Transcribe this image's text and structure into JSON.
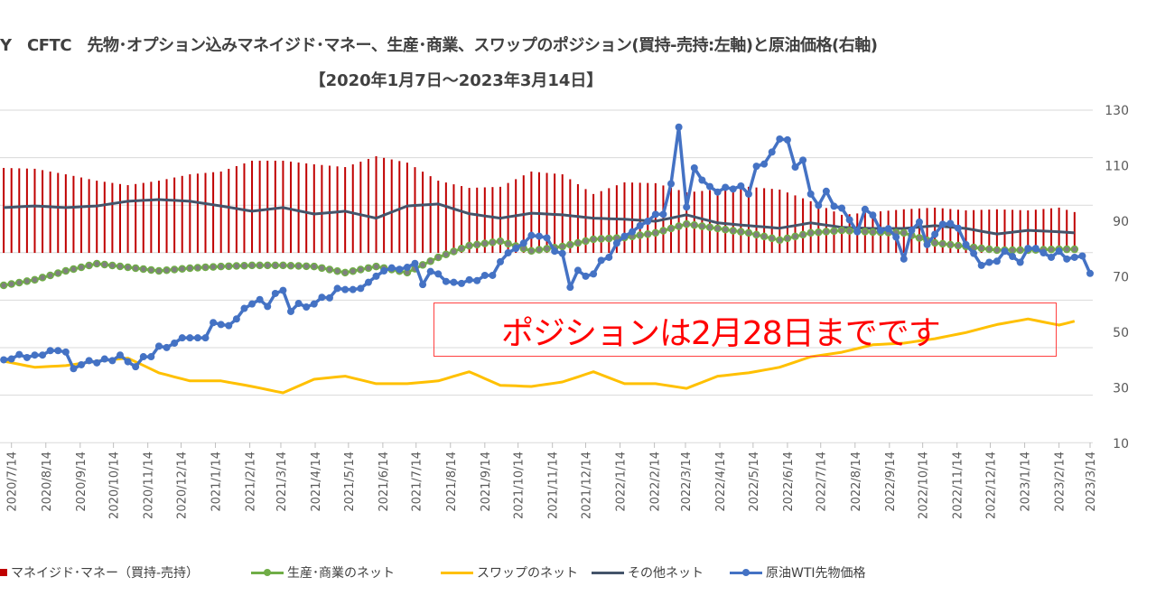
{
  "title": "Y　CFTC　先物･オプション込みマネイジド･マネー、生産･商業、スワップのポジション(買持-売持:左軸)と原油価格(右軸)",
  "subtitle": "【2020年1月7日～2023年3月14日】",
  "annotation": "ポジションは2月28日までです",
  "legend": [
    {
      "label": "マネイジド･マネー（買持-売持）",
      "color": "#c00000",
      "marker": "square"
    },
    {
      "label": "生産･商業のネット",
      "color": "#70ad47",
      "marker": "line-dot"
    },
    {
      "label": "スワップのネット",
      "color": "#ffc000",
      "marker": "line"
    },
    {
      "label": "その他ネット",
      "color": "#44546a",
      "marker": "line"
    },
    {
      "label": "原油WTI先物価格",
      "color": "#4472c4",
      "marker": "line-dot"
    }
  ],
  "chart_data": {
    "type": "bar+line",
    "title": "Y　CFTC　先物･オプション込みマネイジド･マネー、生産･商業、スワップのポジション(買持-売持:左軸)と原油価格(右軸)",
    "subtitle": "【2020年1月7日～2023年3月14日】",
    "right_axis": {
      "ticks": [
        10,
        30,
        50,
        70,
        90,
        110,
        130
      ],
      "range": [
        10,
        130
      ]
    },
    "left_axis": "not visible (cropped)",
    "grid": true,
    "legend_position": "bottom",
    "x_tick_labels": [
      "2020/7/14",
      "2020/8/14",
      "2020/9/14",
      "2020/10/14",
      "2020/11/14",
      "2020/12/14",
      "2021/1/14",
      "2021/2/14",
      "2021/3/14",
      "2021/4/14",
      "2021/5/14",
      "2021/6/14",
      "2021/7/14",
      "2021/8/14",
      "2021/9/14",
      "2021/10/14",
      "2021/11/14",
      "2021/12/14",
      "2022/1/14",
      "2022/2/14",
      "2022/3/14",
      "2022/4/14",
      "2022/5/14",
      "2022/6/14",
      "2022/7/14",
      "2022/8/14",
      "2022/9/14",
      "2022/10/14",
      "2022/11/14",
      "2022/12/14",
      "2023/1/14",
      "2023/2/14",
      "2023/3/14"
    ],
    "wti": {
      "name": "原油WTI先物価格",
      "frequency": "weekly",
      "first": "2020/7/7",
      "last": "2023/3/14",
      "values": [
        40.1,
        40.4,
        42.0,
        40.9,
        41.8,
        41.8,
        43.4,
        43.4,
        42.9,
        36.9,
        38.3,
        39.8,
        39.0,
        40.4,
        39.8,
        41.8,
        39.4,
        37.6,
        41.2,
        41.2,
        45.0,
        44.5,
        46.1,
        48.0,
        48.0,
        48.0,
        48.0,
        53.5,
        52.8,
        52.4,
        54.8,
        58.6,
        60.2,
        61.8,
        59.3,
        64.0,
        65.1,
        57.5,
        60.4,
        59.1,
        60.2,
        62.6,
        62.4,
        65.8,
        65.4,
        65.4,
        65.8,
        68.0,
        70.2,
        72.1,
        73.2,
        72.7,
        73.4,
        74.8,
        67.2,
        71.9,
        71.0,
        68.3,
        68.0,
        67.6,
        68.9,
        68.6,
        70.5,
        70.5,
        75.4,
        78.6,
        80.2,
        82.1,
        84.9,
        84.6,
        84.0,
        79.2,
        78.4,
        66.2,
        72.3,
        70.2,
        71.0,
        75.9,
        77.0,
        82.1,
        84.6,
        86.2,
        88.4,
        90.0,
        92.5,
        92.5,
        103.5,
        123.9,
        95.1,
        109.2,
        104.8,
        102.5,
        100.5,
        102.2,
        101.6,
        102.7,
        99.8,
        109.8,
        110.6,
        114.9,
        119.6,
        119.3,
        109.5,
        112.0,
        99.8,
        95.7,
        100.8,
        95.4,
        94.7,
        90.5,
        86.2,
        94.3,
        92.2,
        86.7,
        87.3,
        84.3,
        76.4,
        86.7,
        89.7,
        81.6,
        85.3,
        88.9,
        89.2,
        87.5,
        81.6,
        78.4,
        74.1,
        75.2,
        75.6,
        79.2,
        77.3,
        75.2,
        80.2,
        80.2,
        78.6,
        77.0,
        79.2,
        76.4,
        77.0,
        77.5,
        71.2
      ]
    },
    "positions": {
      "dates": [
        "2020/7/7",
        "2020/8/4",
        "2020/9/1",
        "2020/9/29",
        "2020/10/27",
        "2020/11/24",
        "2020/12/22",
        "2021/1/19",
        "2021/2/16",
        "2021/3/16",
        "2021/4/13",
        "2021/5/11",
        "2021/6/8",
        "2021/7/6",
        "2021/8/3",
        "2021/8/31",
        "2021/9/28",
        "2021/10/26",
        "2021/11/23",
        "2021/12/21",
        "2022/1/18",
        "2022/2/15",
        "2022/3/15",
        "2022/4/12",
        "2022/5/10",
        "2022/6/7",
        "2022/7/5",
        "2022/8/2",
        "2022/8/30",
        "2022/9/27",
        "2022/10/25",
        "2022/11/22",
        "2022/12/20",
        "2023/1/17",
        "2023/2/14",
        "2023/2/28"
      ],
      "bar_base": 78.6,
      "managed_money": [
        109.2,
        108.9,
        106.9,
        104.6,
        103.0,
        104.6,
        106.9,
        107.9,
        111.8,
        111.8,
        110.5,
        109.5,
        113.4,
        111.1,
        104.6,
        102.0,
        102.4,
        107.9,
        106.9,
        99.8,
        104.0,
        103.7,
        100.4,
        101.4,
        102.4,
        101.4,
        97.2,
        92.3,
        93.3,
        94.3,
        94.9,
        93.9,
        94.3,
        93.9,
        94.9,
        93.3
      ],
      "producer_merchant": [
        66.9,
        68.9,
        72.1,
        74.7,
        73.4,
        72.1,
        73.1,
        73.7,
        74.1,
        74.1,
        73.7,
        71.5,
        73.7,
        71.5,
        77.0,
        81.2,
        82.8,
        79.3,
        80.9,
        83.5,
        84.1,
        85.8,
        89.0,
        87.4,
        85.8,
        83.2,
        85.8,
        86.7,
        86.1,
        85.8,
        82.2,
        80.9,
        79.6,
        79.6,
        79.9,
        79.9
      ],
      "swap": [
        39.6,
        37.4,
        38.0,
        39.6,
        40.7,
        35.4,
        32.5,
        32.5,
        30.5,
        28.2,
        33.1,
        34.2,
        31.5,
        31.5,
        32.5,
        35.8,
        30.9,
        30.5,
        32.1,
        35.8,
        31.5,
        31.5,
        29.8,
        34.2,
        35.4,
        37.4,
        41.2,
        42.8,
        45.5,
        46.1,
        47.7,
        49.9,
        52.8,
        54.8,
        52.6,
        54.0
      ],
      "other": [
        94.9,
        95.5,
        94.9,
        95.5,
        97.2,
        97.8,
        97.2,
        95.5,
        93.6,
        94.9,
        92.6,
        93.6,
        91.1,
        95.5,
        96.2,
        92.7,
        91.1,
        92.9,
        92.3,
        91.1,
        90.7,
        90.0,
        92.3,
        89.4,
        88.4,
        87.5,
        89.4,
        87.8,
        87.4,
        87.4,
        88.4,
        87.4,
        85.4,
        86.7,
        86.2,
        85.8
      ]
    }
  }
}
